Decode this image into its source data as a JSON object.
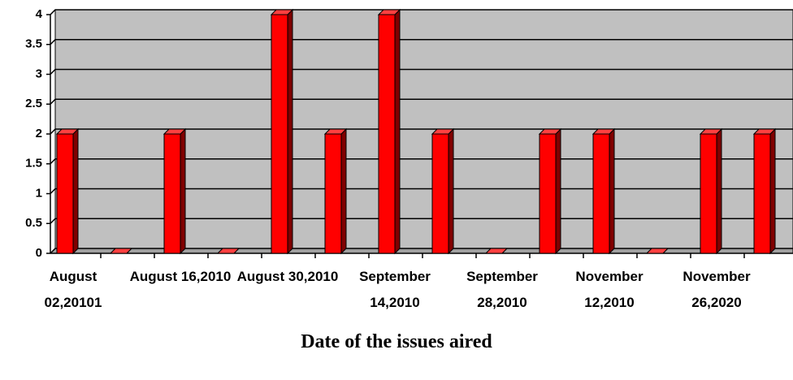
{
  "chart_data": {
    "type": "bar",
    "x_label": "Date of the issues aired",
    "categories": [
      "August 02,20101",
      null,
      "August 16,2010",
      null,
      "August 30,2010",
      null,
      "September 14,2010",
      null,
      "September 28,2010",
      null,
      "November 12,2010",
      null,
      "November 26,2020",
      null
    ],
    "values": [
      2,
      0,
      2,
      0,
      4,
      2,
      4,
      2,
      0,
      2,
      2,
      0,
      2,
      2
    ],
    "color": "#ff0000",
    "ylim": [
      0,
      4
    ],
    "yticks": [
      0,
      0.5,
      1,
      1.5,
      2,
      2.5,
      3,
      3.5,
      4
    ],
    "grid": true
  }
}
